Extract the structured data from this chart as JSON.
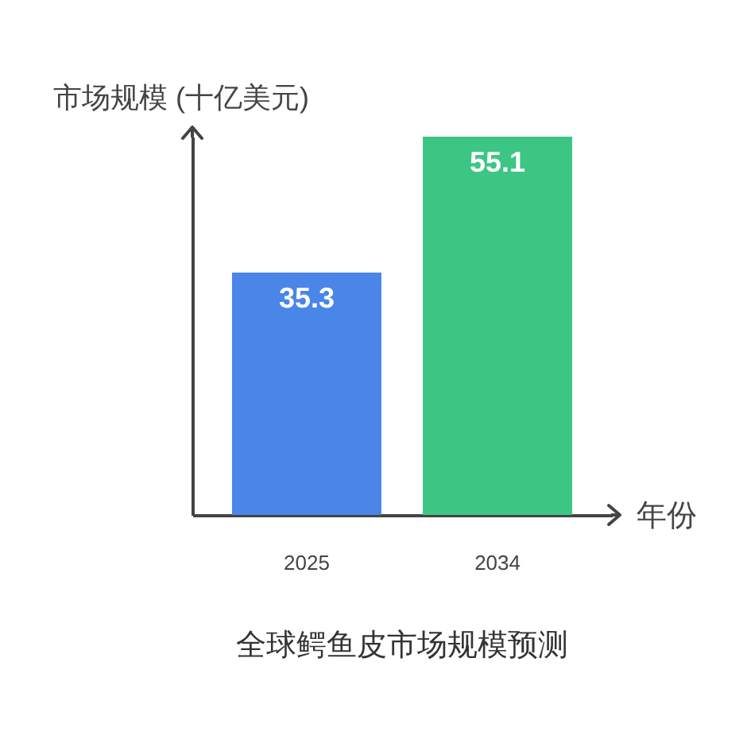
{
  "chart_data": {
    "type": "bar",
    "title": "全球鳄鱼皮市场规模预测",
    "xlabel": "年份",
    "ylabel": "市场规模 (十亿美元)",
    "categories": [
      "2025",
      "2034"
    ],
    "values": [
      35.3,
      55.1
    ],
    "colors": [
      "#4a86e8",
      "#3dc584"
    ],
    "data_labels": true,
    "tick_labels": "x"
  }
}
